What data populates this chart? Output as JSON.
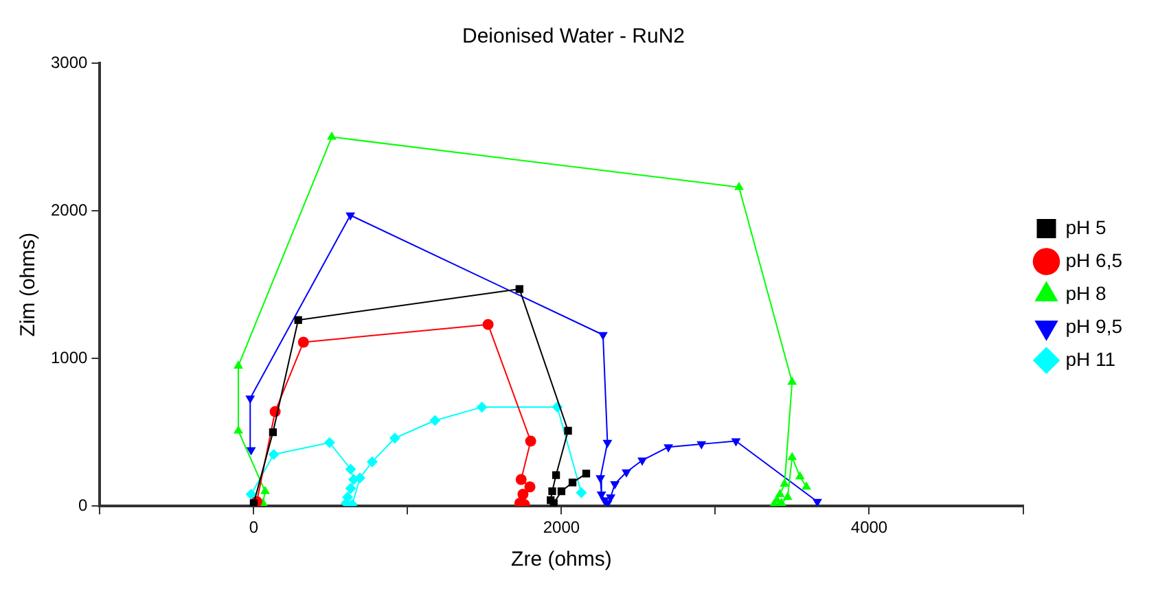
{
  "chart_data": {
    "type": "line",
    "title": "Deionised Water - RuN2",
    "xlabel": "Zre (ohms)",
    "ylabel": "Zim (ohms)",
    "xlim": [
      -1000,
      5000
    ],
    "xticks": [
      {
        "value": -1000,
        "label": null
      },
      0,
      {
        "value": 1000,
        "label": null
      },
      2000,
      {
        "value": 3000,
        "label": null
      },
      4000,
      {
        "value": 5000,
        "label": null
      }
    ],
    "ylim": [
      0,
      3000
    ],
    "yticks": [
      0,
      1000,
      2000,
      3000
    ],
    "grid": false,
    "legend": "right",
    "series": [
      {
        "name": "pH 5",
        "color": "#000000",
        "marker": "square",
        "x": [
          0,
          125,
          289,
          1727,
          2043,
          1965,
          1940,
          1930,
          1950,
          2000,
          2072,
          2161
        ],
        "values": [
          20,
          500,
          1260,
          1470,
          510,
          210,
          100,
          40,
          20,
          100,
          160,
          220
        ]
      },
      {
        "name": "pH 6,5",
        "color": "#ff0000",
        "marker": "circle",
        "x": [
          20,
          139,
          323,
          1523,
          1800,
          1738,
          1795,
          1750,
          1730,
          1760
        ],
        "values": [
          30,
          640,
          1110,
          1230,
          440,
          180,
          130,
          80,
          20,
          10
        ]
      },
      {
        "name": "pH 8",
        "color": "#00ff00",
        "marker": "triangle",
        "x": [
          60,
          74,
          -100,
          -100,
          507,
          3154,
          3499,
          3450,
          3420,
          3400,
          3380,
          3430,
          3470,
          3499,
          3550,
          3592
        ],
        "values": [
          20,
          100,
          510,
          950,
          2500,
          2160,
          840,
          150,
          80,
          40,
          10,
          20,
          60,
          330,
          200,
          130
        ]
      },
      {
        "name": "pH 9,5",
        "color": "#0000ff",
        "marker": "triangle-down",
        "x": [
          -17,
          -23,
          628,
          2270,
          2299,
          2253,
          2260,
          2280,
          2300,
          2320,
          2347,
          2422,
          2525,
          2695,
          2910,
          3134,
          3663
        ],
        "values": [
          380,
          730,
          1970,
          1160,
          430,
          190,
          80,
          40,
          20,
          60,
          150,
          230,
          310,
          400,
          420,
          440,
          30
        ]
      },
      {
        "name": "pH 11",
        "color": "#00ffff",
        "marker": "diamond",
        "x": [
          -17,
          130,
          493,
          630,
          650,
          630,
          610,
          600,
          640,
          690,
          770,
          917,
          1178,
          1483,
          1973,
          2129
        ],
        "values": [
          80,
          350,
          430,
          250,
          180,
          120,
          60,
          20,
          10,
          190,
          300,
          460,
          580,
          670,
          670,
          90
        ]
      }
    ]
  }
}
